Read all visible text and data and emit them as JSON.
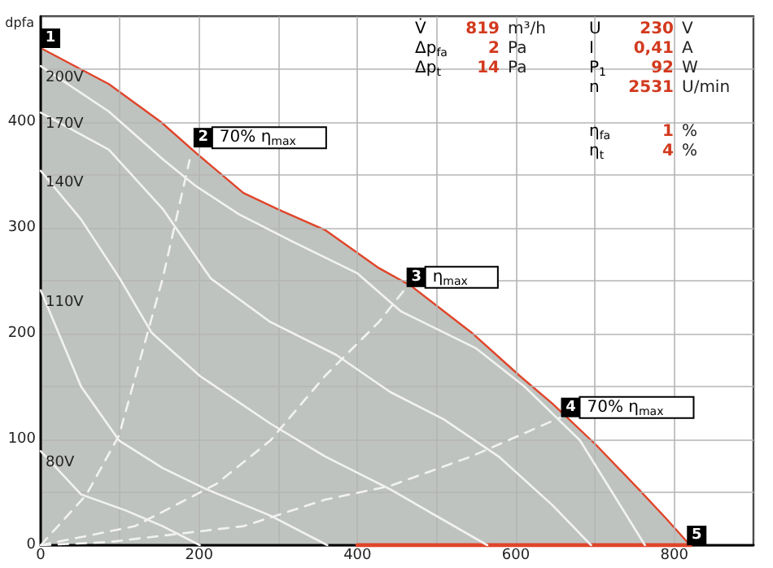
{
  "chart_data": {
    "type": "line",
    "ylabel": "dpfa",
    "xlim": [
      0,
      900
    ],
    "xticks": [
      0,
      {
        "value": 100,
        "label": null
      },
      200,
      {
        "value": 300,
        "label": null
      },
      400,
      {
        "value": 500,
        "label": null
      },
      600,
      {
        "value": 700,
        "label": null
      },
      800,
      {
        "value": 900,
        "label": null
      }
    ],
    "ylim": [
      0,
      500
    ],
    "yticks": [
      0,
      {
        "value": 50,
        "label": null
      },
      100,
      {
        "value": 150,
        "label": null
      },
      200,
      {
        "value": 250,
        "label": null
      },
      300,
      {
        "value": 350,
        "label": null
      },
      400,
      {
        "value": 450,
        "label": null
      },
      {
        "value": 500,
        "label": null
      }
    ],
    "grid": true,
    "marker": "none",
    "series": [
      {
        "type": "area",
        "color": "#e0452a",
        "x": [
          0,
          86,
          152,
          199,
          256,
          304,
          359,
          427,
          468,
          544,
          605,
          646,
          701,
          755,
          790,
          820
        ],
        "values": [
          470,
          436,
          400,
          369,
          333,
          316,
          298,
          262,
          245,
          201,
          160,
          134,
          95,
          53,
          25,
          0
        ]
      },
      {
        "color": "#e0452a",
        "x": [
          400,
          820
        ],
        "values": [
          0,
          0
        ]
      },
      {
        "name": "200V",
        "color": "#f2f2f2",
        "x": [
          0,
          86,
          154,
          195,
          250,
          318,
          400,
          455,
          550,
          611,
          681,
          763
        ],
        "values": [
          453,
          410,
          365,
          340,
          313,
          287,
          257,
          221,
          186,
          150,
          99,
          0
        ]
      },
      {
        "name": "170V",
        "color": "#f2f2f2",
        "x": [
          0,
          86,
          154,
          215,
          290,
          373,
          441,
          509,
          578,
          646,
          695
        ],
        "values": [
          409,
          374,
          318,
          252,
          211,
          180,
          145,
          119,
          84,
          38,
          0
        ]
      },
      {
        "name": "140V",
        "color": "#f2f2f2",
        "x": [
          0,
          51,
          100,
          140,
          201,
          290,
          359,
          441,
          564
        ],
        "values": [
          354,
          308,
          252,
          201,
          160,
          115,
          84,
          53,
          0
        ]
      },
      {
        "name": "110V",
        "color": "#f2f2f2",
        "x": [
          0,
          51,
          99,
          154,
          209,
          290,
          362
        ],
        "values": [
          241,
          150,
          99,
          73,
          53,
          28,
          0
        ]
      },
      {
        "name": "80V",
        "color": "#f2f2f2",
        "x": [
          0,
          51,
          107,
          154,
          201
        ],
        "values": [
          89,
          48,
          33,
          18,
          0
        ]
      },
      {
        "color": "#f2f2f2",
        "line_style": "dashed",
        "x": [
          0,
          58,
          99,
          154,
          188
        ],
        "values": [
          0,
          48,
          104,
          252,
          364
        ]
      },
      {
        "color": "#f2f2f2",
        "line_style": "dashed",
        "x": [
          0,
          119,
          222,
          290,
          359,
          427,
          462
        ],
        "values": [
          0,
          18,
          58,
          99,
          160,
          211,
          244
        ]
      },
      {
        "color": "#f2f2f2",
        "line_style": "dashed",
        "x": [
          0,
          86,
          256,
          359,
          441,
          544,
          657
        ],
        "values": [
          0,
          3,
          18,
          43,
          56,
          84,
          121
        ]
      }
    ],
    "annotations": [
      {
        "text": "1",
        "x": 0,
        "y": 470
      },
      {
        "text": "2 70% η$_{max}$",
        "x": 193,
        "y": 376
      },
      {
        "text": "3 η$_{max}$",
        "x": 462,
        "y": 244
      },
      {
        "text": "4 70% η$_{max}$",
        "x": 657,
        "y": 121
      },
      {
        "text": "5",
        "x": 816,
        "y": 0
      },
      "V̇ 819 m³/h",
      "Δp$_{fa}$ 2 Pa",
      "Δp$_{t}$ 14 Pa",
      "U 230 V",
      "I 0,41 A",
      "P$_{1}$ 92 W",
      "n 2531 U/min",
      "η$_{fa}$ 1 %",
      "η$_{t}$ 4 %"
    ]
  }
}
